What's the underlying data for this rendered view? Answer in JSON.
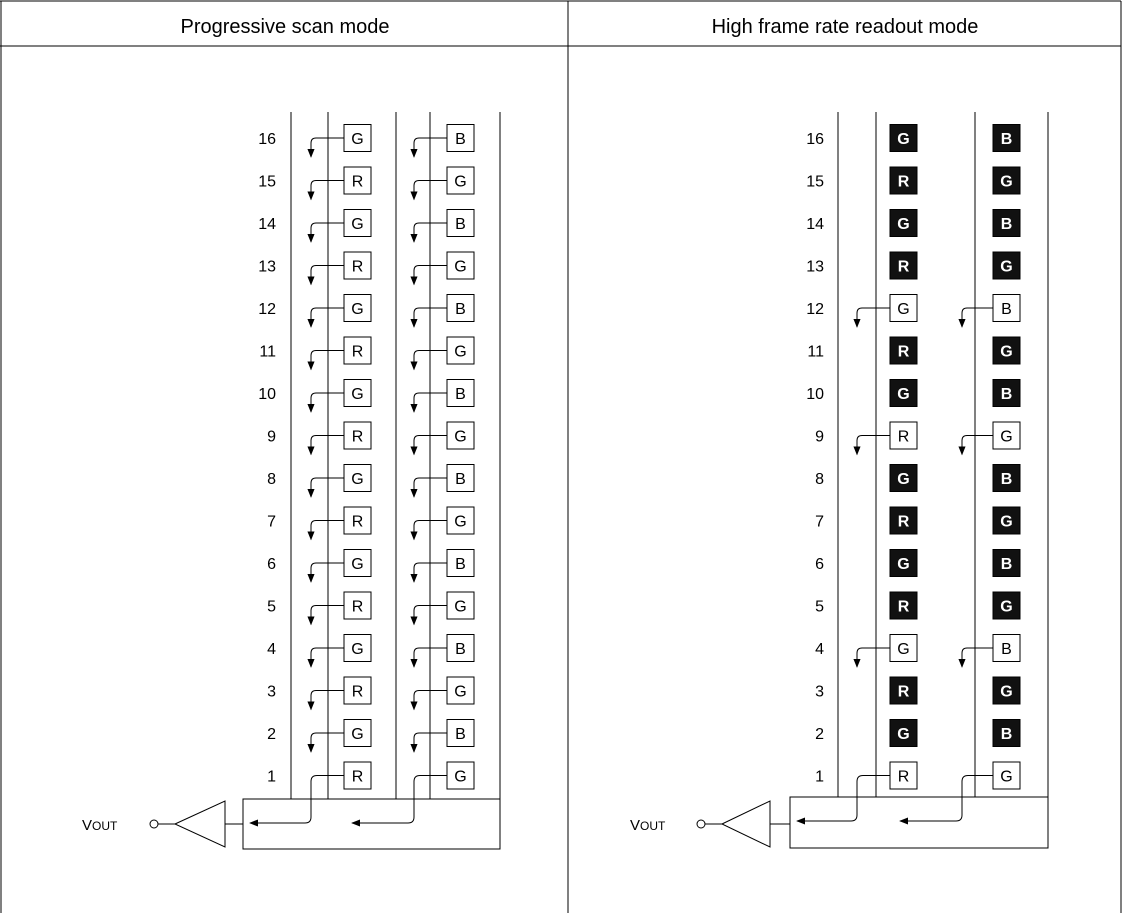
{
  "panels": [
    {
      "title": "Progressive scan mode",
      "output_label": {
        "main": "V",
        "subscript": "OUT"
      },
      "row_numbers": [
        "1",
        "2",
        "3",
        "4",
        "5",
        "6",
        "7",
        "8",
        "9",
        "10",
        "11",
        "12",
        "13",
        "14",
        "15",
        "16"
      ],
      "columns": [
        {
          "cells": [
            "R",
            "G",
            "R",
            "G",
            "R",
            "G",
            "R",
            "G",
            "R",
            "G",
            "R",
            "G",
            "R",
            "G",
            "R",
            "G"
          ],
          "highlighted": [
            false,
            false,
            false,
            false,
            false,
            false,
            false,
            false,
            false,
            false,
            false,
            false,
            false,
            false,
            false,
            false
          ]
        },
        {
          "cells": [
            "G",
            "B",
            "G",
            "B",
            "G",
            "B",
            "G",
            "B",
            "G",
            "B",
            "G",
            "B",
            "G",
            "B",
            "G",
            "B"
          ],
          "highlighted": [
            false,
            false,
            false,
            false,
            false,
            false,
            false,
            false,
            false,
            false,
            false,
            false,
            false,
            false,
            false,
            false
          ]
        }
      ]
    },
    {
      "title": "High frame rate readout mode",
      "output_label": {
        "main": "V",
        "subscript": "OUT"
      },
      "row_numbers": [
        "1",
        "2",
        "3",
        "4",
        "5",
        "6",
        "7",
        "8",
        "9",
        "10",
        "11",
        "12",
        "13",
        "14",
        "15",
        "16"
      ],
      "columns": [
        {
          "cells": [
            "R",
            "G",
            "R",
            "G",
            "R",
            "G",
            "R",
            "G",
            "R",
            "G",
            "R",
            "G",
            "R",
            "G",
            "R",
            "G"
          ],
          "highlighted": [
            false,
            true,
            true,
            false,
            true,
            true,
            true,
            true,
            false,
            true,
            true,
            false,
            true,
            true,
            true,
            true
          ]
        },
        {
          "cells": [
            "G",
            "B",
            "G",
            "B",
            "G",
            "B",
            "G",
            "B",
            "G",
            "B",
            "G",
            "B",
            "G",
            "B",
            "G",
            "B"
          ],
          "highlighted": [
            false,
            true,
            true,
            false,
            true,
            true,
            true,
            true,
            false,
            true,
            true,
            false,
            true,
            true,
            true,
            true
          ]
        }
      ]
    }
  ],
  "colors": {
    "line": "#000000",
    "background": "#ffffff",
    "highlight_fill": "#111111",
    "highlight_text": "#ffffff"
  }
}
